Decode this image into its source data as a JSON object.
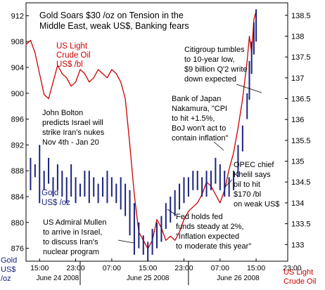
{
  "chart_data": {
    "type": "line",
    "title_lines": [
      "Gold Soars $30 /oz on Tension in the",
      "Middle East, weak US$, Banking fears"
    ],
    "left_axis": {
      "ticks": [
        876,
        880,
        884,
        888,
        892,
        896,
        900,
        904,
        908,
        912
      ],
      "range": [
        874,
        914
      ],
      "label_lines": [
        "Gold",
        "US$",
        "/oz"
      ]
    },
    "right_axis": {
      "ticks": [
        133,
        133.5,
        134,
        134.5,
        135,
        135.5,
        136,
        136.5,
        137,
        137.5,
        138,
        138.5
      ],
      "range": [
        132.6,
        138.8
      ],
      "label_lines": [
        "US Light",
        "Crude Oil"
      ]
    },
    "x_axis": {
      "range": [
        0,
        58
      ],
      "ticks": [
        {
          "x": 3,
          "label": "15:00"
        },
        {
          "x": 11,
          "label": "23:00"
        },
        {
          "x": 19,
          "label": "07:00"
        },
        {
          "x": 27,
          "label": "15:00"
        },
        {
          "x": 35,
          "label": "23:00"
        },
        {
          "x": 43,
          "label": "07:00"
        },
        {
          "x": 51,
          "label": "15:00"
        },
        {
          "x": 59,
          "label": "23:00"
        }
      ],
      "day_labels": [
        {
          "x": 7,
          "label": "June 24 2008"
        },
        {
          "x": 27,
          "label": "June 25 2008"
        },
        {
          "x": 47,
          "label": "June 26 2008"
        }
      ],
      "day_separators": [
        12,
        36
      ]
    },
    "series": [
      {
        "name": "US Light Crude Oil US$ /bl",
        "axis": "right",
        "color": "#cc0000",
        "x": [
          0,
          1,
          2,
          3,
          4,
          5,
          6,
          7,
          8,
          9,
          10,
          11,
          12,
          13,
          14,
          15,
          16,
          17,
          18,
          19,
          20,
          21,
          22,
          23,
          24,
          25,
          26,
          27,
          28,
          29,
          30,
          31,
          32,
          33,
          34,
          35,
          36,
          37,
          38,
          39,
          40,
          41,
          42,
          43,
          44,
          45,
          46,
          47,
          48,
          49,
          49.5,
          50,
          50.5,
          51
        ],
        "values": [
          137.8,
          137.9,
          137.6,
          137.1,
          136.6,
          136.5,
          136.9,
          137.3,
          137.1,
          137.0,
          136.8,
          136.9,
          137.2,
          137.1,
          136.9,
          137.0,
          137.2,
          137.1,
          137.0,
          137.2,
          137.1,
          136.9,
          136.5,
          135.4,
          134.2,
          133.3,
          133.1,
          132.9,
          133.1,
          133.6,
          133.4,
          133.1,
          133.2,
          133.1,
          133.3,
          133.6,
          133.8,
          133.9,
          134.0,
          134.2,
          134.5,
          134.4,
          134.2,
          134.0,
          134.3,
          134.8,
          135.2,
          135.8,
          136.5,
          137.4,
          138.0,
          137.6,
          138.4,
          138.6
        ]
      },
      {
        "name": "Gold US$ /oz",
        "axis": "left",
        "color": "#1a237e",
        "style": "high-low bars",
        "x": [
          1,
          2,
          3,
          4,
          5,
          6,
          7,
          8,
          9,
          10,
          11,
          12,
          13,
          14,
          15,
          16,
          17,
          18,
          19,
          20,
          21,
          22,
          23,
          24,
          25,
          26,
          27,
          28,
          29,
          30,
          31,
          32,
          33,
          34,
          35,
          36,
          37,
          38,
          39,
          40,
          41,
          42,
          43,
          44,
          45,
          46,
          47,
          48,
          49,
          49.5,
          50,
          50.5,
          51
        ],
        "high": [
          890,
          889,
          892,
          888,
          890,
          887,
          889,
          888,
          887,
          889,
          887,
          886,
          888,
          888,
          887,
          886,
          887,
          888,
          887,
          886,
          887,
          886,
          885,
          883,
          880,
          878,
          877,
          879,
          880,
          881,
          883,
          884,
          885,
          886,
          887,
          887,
          888,
          888,
          887,
          888,
          888,
          890,
          889,
          888,
          887,
          888,
          892,
          895,
          900,
          905,
          908,
          911,
          913
        ],
        "low": [
          885,
          887,
          883,
          885,
          886,
          884,
          885,
          884,
          883,
          884,
          883,
          884,
          884,
          883,
          884,
          883,
          884,
          883,
          884,
          883,
          882,
          881,
          878,
          875,
          876,
          875,
          874,
          875,
          876,
          877,
          879,
          880,
          881,
          882,
          883,
          884,
          885,
          885,
          884,
          884,
          885,
          886,
          885,
          884,
          884,
          885,
          887,
          891,
          896,
          899,
          903,
          906,
          908
        ]
      }
    ],
    "legend_labels": {
      "oil_lines": [
        "US Light",
        "Crude Oil",
        "US$ /bl"
      ],
      "gold_lines": [
        "Gold",
        "US$ /oz"
      ]
    },
    "annotations": [
      {
        "id": "bolton",
        "lines": [
          "John Bolton",
          "predicts Israel will",
          "strike Iran's nukes",
          "Nov 4th - Jan 20"
        ]
      },
      {
        "id": "citigroup",
        "lines": [
          "Citigroup tumbles",
          "to 10-year low,",
          "$9 billion Q'2 write",
          "down expected"
        ]
      },
      {
        "id": "boj",
        "lines": [
          "Bank of Japan",
          "Nakamura, \"CPI",
          "to hit +1.5%,",
          "BoJ won't act to",
          "contain inflation\""
        ]
      },
      {
        "id": "opec",
        "lines": [
          "OPEC chief",
          "Khelil says",
          "oil to hit",
          "$170 /bl",
          "on weak US$"
        ]
      },
      {
        "id": "mullen",
        "lines": [
          "US Admiral Mullen",
          "to arrive in Israel,",
          "to discuss Iran's",
          "nuclear program"
        ]
      },
      {
        "id": "fed",
        "lines": [
          "Fed holds fed",
          "funds steady at 2%,",
          "\"Inflation expected",
          "to moderate this year\""
        ]
      }
    ],
    "colors": {
      "gold": "#1a237e",
      "oil": "#cc0000",
      "annotation_text": "#000000"
    }
  }
}
